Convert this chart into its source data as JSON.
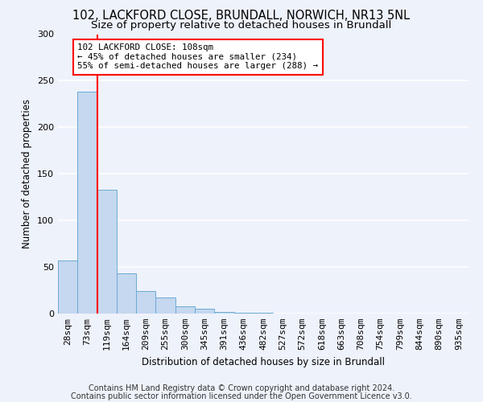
{
  "title1": "102, LACKFORD CLOSE, BRUNDALL, NORWICH, NR13 5NL",
  "title2": "Size of property relative to detached houses in Brundall",
  "xlabel": "Distribution of detached houses by size in Brundall",
  "ylabel": "Number of detached properties",
  "bins": [
    "28sqm",
    "73sqm",
    "119sqm",
    "164sqm",
    "209sqm",
    "255sqm",
    "300sqm",
    "345sqm",
    "391sqm",
    "436sqm",
    "482sqm",
    "527sqm",
    "572sqm",
    "618sqm",
    "663sqm",
    "708sqm",
    "754sqm",
    "799sqm",
    "844sqm",
    "890sqm",
    "935sqm"
  ],
  "values": [
    57,
    238,
    133,
    43,
    24,
    17,
    8,
    5,
    2,
    1,
    1,
    0,
    0,
    0,
    0,
    0,
    0,
    0,
    0,
    0,
    0
  ],
  "bar_color": "#c5d8ef",
  "bar_edge_color": "#6aaad4",
  "vline_x_idx": 1.5,
  "vline_color": "red",
  "annotation_text": "102 LACKFORD CLOSE: 108sqm\n← 45% of detached houses are smaller (234)\n55% of semi-detached houses are larger (288) →",
  "annotation_box_color": "white",
  "annotation_box_edge_color": "red",
  "footnote1": "Contains HM Land Registry data © Crown copyright and database right 2024.",
  "footnote2": "Contains public sector information licensed under the Open Government Licence v3.0.",
  "ylim": [
    0,
    300
  ],
  "yticks": [
    0,
    50,
    100,
    150,
    200,
    250,
    300
  ],
  "background_color": "#eef2fb",
  "grid_color": "white",
  "title1_fontsize": 10.5,
  "title2_fontsize": 9.5,
  "axis_label_fontsize": 8.5,
  "tick_fontsize": 8,
  "annotation_fontsize": 7.8,
  "footnote_fontsize": 7
}
